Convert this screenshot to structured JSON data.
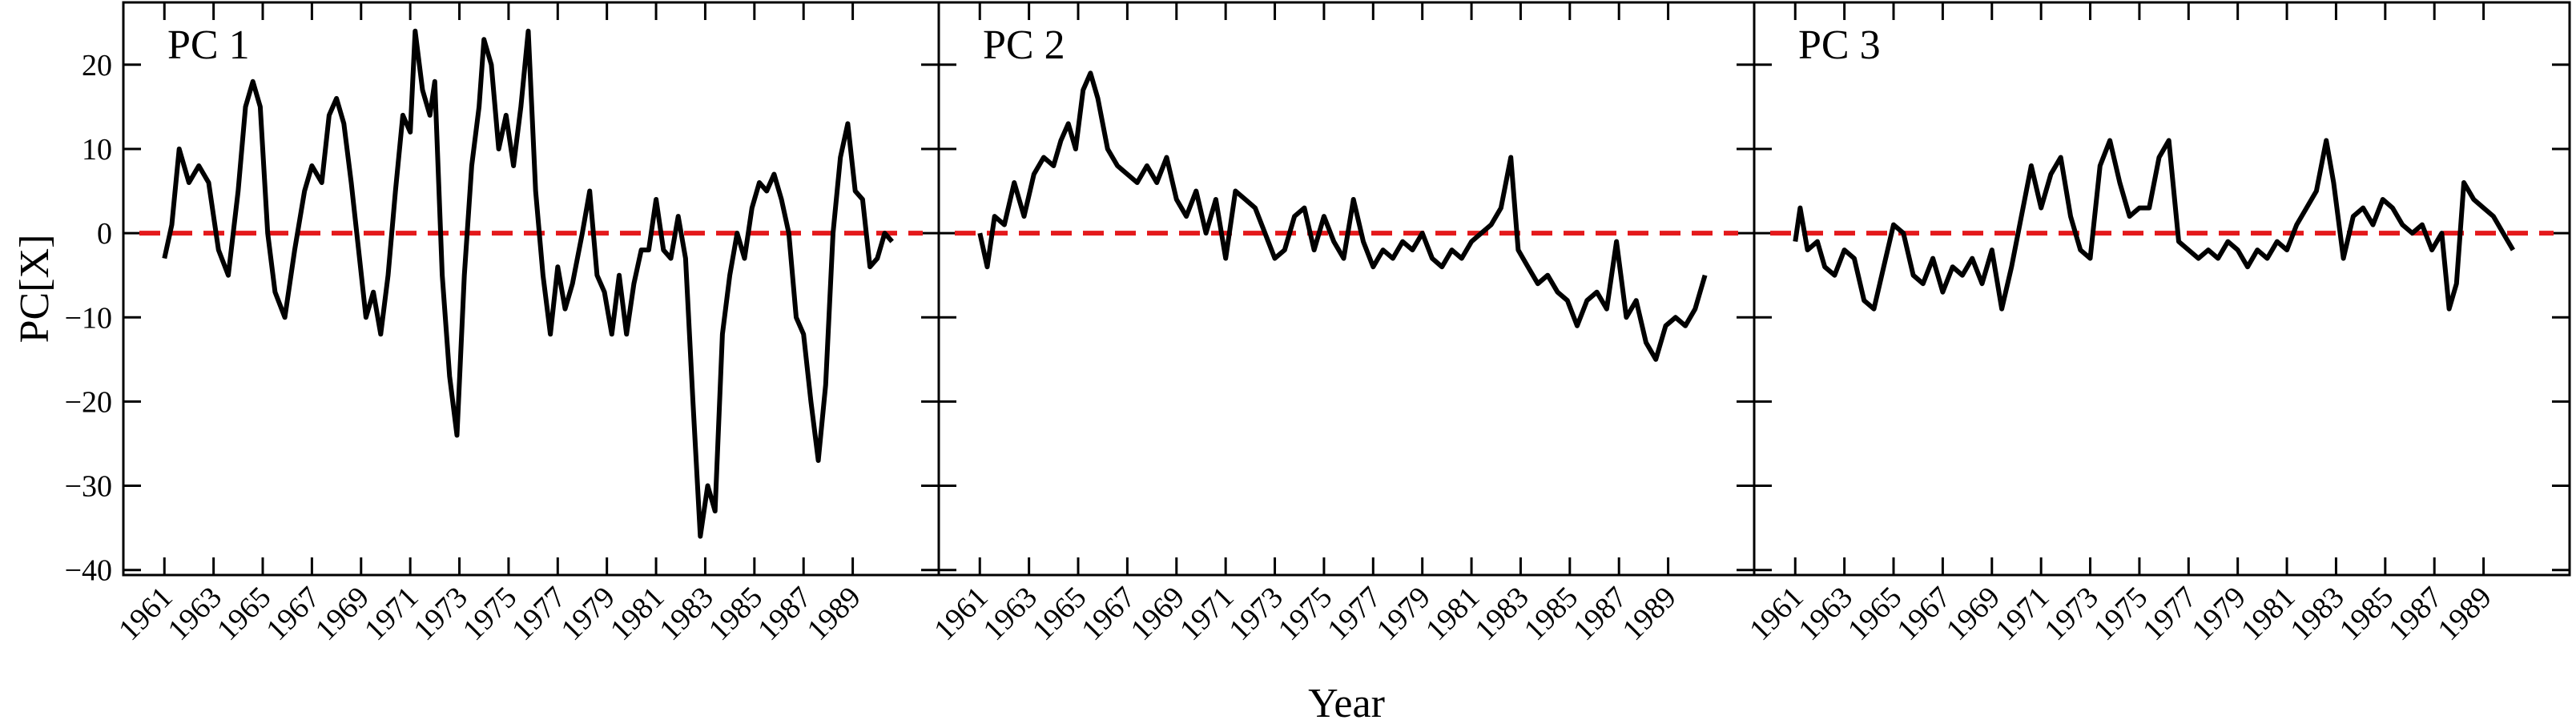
{
  "chart_data": [
    {
      "type": "line",
      "label": "PC 1",
      "ylabel": "PC[X]",
      "color": "#000000",
      "hline": 0,
      "hline_color": "#e41a1c",
      "xlim": [
        1959.33,
        1992.5
      ],
      "ylim": [
        -40.6,
        27.4
      ],
      "xticks": [
        1961,
        1963,
        1965,
        1967,
        1969,
        1971,
        1973,
        1975,
        1977,
        1979,
        1981,
        1983,
        1985,
        1987,
        1989
      ],
      "yticks": [
        {
          "value": -40,
          "label": "−40"
        },
        {
          "value": -30,
          "label": "−30"
        },
        {
          "value": -20,
          "label": "−20"
        },
        {
          "value": -10,
          "label": "−10"
        },
        0,
        10,
        20
      ],
      "x": [
        1961.0,
        1961.3,
        1961.6,
        1962.0,
        1962.4,
        1962.8,
        1963.2,
        1963.6,
        1964.0,
        1964.3,
        1964.6,
        1964.9,
        1965.2,
        1965.5,
        1965.9,
        1966.3,
        1966.7,
        1967.0,
        1967.4,
        1967.7,
        1968.0,
        1968.3,
        1968.6,
        1968.9,
        1969.2,
        1969.5,
        1969.8,
        1970.1,
        1970.4,
        1970.7,
        1971.0,
        1971.2,
        1971.5,
        1971.8,
        1972.0,
        1972.3,
        1972.6,
        1972.9,
        1973.2,
        1973.5,
        1973.8,
        1974.0,
        1974.3,
        1974.6,
        1974.9,
        1975.2,
        1975.5,
        1975.8,
        1976.1,
        1976.4,
        1976.7,
        1977.0,
        1977.3,
        1977.6,
        1978.0,
        1978.3,
        1978.6,
        1978.9,
        1979.2,
        1979.5,
        1979.8,
        1980.1,
        1980.4,
        1980.7,
        1981.0,
        1981.3,
        1981.6,
        1981.9,
        1982.2,
        1982.5,
        1982.8,
        1983.1,
        1983.4,
        1983.7,
        1984.0,
        1984.3,
        1984.6,
        1984.9,
        1985.2,
        1985.5,
        1985.8,
        1986.1,
        1986.4,
        1986.7,
        1987.0,
        1987.3,
        1987.6,
        1987.9,
        1988.2,
        1988.5,
        1988.8,
        1989.1,
        1989.4,
        1989.7,
        1990.0,
        1990.3,
        1990.6
      ],
      "values": [
        -3,
        1,
        10,
        6,
        8,
        6,
        -2,
        -5,
        5,
        15,
        18,
        15,
        0,
        -7,
        -10,
        -2,
        5,
        8,
        6,
        14,
        16,
        13,
        6,
        -2,
        -10,
        -7,
        -12,
        -5,
        5,
        14,
        12,
        24,
        17,
        14,
        18,
        -5,
        -17,
        -24,
        -5,
        8,
        15,
        23,
        20,
        10,
        14,
        8,
        15,
        24,
        5,
        -5,
        -12,
        -4,
        -9,
        -6,
        0,
        5,
        -5,
        -7,
        -12,
        -5,
        -12,
        -6,
        -2,
        -2,
        4,
        -2,
        -3,
        2,
        -3,
        -20,
        -36,
        -30,
        -33,
        -12,
        -5,
        0,
        -3,
        3,
        6,
        5,
        7,
        4,
        0,
        -10,
        -12,
        -20,
        -27,
        -18,
        0,
        9,
        13,
        5,
        4,
        -4,
        -3,
        0,
        -1
      ]
    },
    {
      "type": "line",
      "label": "PC 2",
      "xlabel": "Year",
      "color": "#000000",
      "hline": 0,
      "hline_color": "#e41a1c",
      "xlim": [
        1959.33,
        1992.5
      ],
      "ylim": [
        -40.6,
        27.4
      ],
      "xticks": [
        1961,
        1963,
        1965,
        1967,
        1969,
        1971,
        1973,
        1975,
        1977,
        1979,
        1981,
        1983,
        1985,
        1987,
        1989
      ],
      "yticks": [
        -40,
        -30,
        -20,
        -10,
        0,
        10,
        20
      ],
      "x": [
        1961.0,
        1961.3,
        1961.6,
        1962.0,
        1962.4,
        1962.8,
        1963.2,
        1963.6,
        1964.0,
        1964.3,
        1964.6,
        1964.9,
        1965.2,
        1965.5,
        1965.8,
        1966.2,
        1966.6,
        1967.0,
        1967.4,
        1967.8,
        1968.2,
        1968.6,
        1969.0,
        1969.4,
        1969.8,
        1970.2,
        1970.6,
        1971.0,
        1971.4,
        1971.8,
        1972.2,
        1972.6,
        1973.0,
        1973.4,
        1973.8,
        1974.2,
        1974.6,
        1975.0,
        1975.4,
        1975.8,
        1976.2,
        1976.6,
        1977.0,
        1977.4,
        1977.8,
        1978.2,
        1978.6,
        1979.0,
        1979.4,
        1979.8,
        1980.2,
        1980.6,
        1981.0,
        1981.4,
        1981.8,
        1982.2,
        1982.6,
        1982.9,
        1983.3,
        1983.7,
        1984.1,
        1984.5,
        1984.9,
        1985.3,
        1985.7,
        1986.1,
        1986.5,
        1986.9,
        1987.3,
        1987.7,
        1988.1,
        1988.5,
        1988.9,
        1989.3,
        1989.7,
        1990.1,
        1990.5
      ],
      "values": [
        0,
        -4,
        2,
        1,
        6,
        2,
        7,
        9,
        8,
        11,
        13,
        10,
        17,
        19,
        16,
        10,
        8,
        7,
        6,
        8,
        6,
        9,
        4,
        2,
        5,
        0,
        4,
        -3,
        5,
        4,
        3,
        0,
        -3,
        -2,
        2,
        3,
        -2,
        2,
        -1,
        -3,
        4,
        -1,
        -4,
        -2,
        -3,
        -1,
        -2,
        0,
        -3,
        -4,
        -2,
        -3,
        -1,
        0,
        1,
        3,
        9,
        -2,
        -4,
        -6,
        -5,
        -7,
        -8,
        -11,
        -8,
        -7,
        -9,
        -1,
        -10,
        -8,
        -13,
        -15,
        -11,
        -10,
        -11,
        -9,
        -5
      ]
    },
    {
      "type": "line",
      "label": "PC 3",
      "color": "#000000",
      "hline": 0,
      "hline_color": "#e41a1c",
      "xlim": [
        1959.33,
        1992.5
      ],
      "ylim": [
        -40.6,
        27.4
      ],
      "xticks": [
        1961,
        1963,
        1965,
        1967,
        1969,
        1971,
        1973,
        1975,
        1977,
        1979,
        1981,
        1983,
        1985,
        1987,
        1989
      ],
      "yticks": [
        -40,
        -30,
        -20,
        -10,
        0,
        10,
        20
      ],
      "x": [
        1961.0,
        1961.2,
        1961.5,
        1961.9,
        1962.2,
        1962.6,
        1963.0,
        1963.4,
        1963.8,
        1964.2,
        1964.6,
        1965.0,
        1965.4,
        1965.8,
        1966.2,
        1966.6,
        1967.0,
        1967.4,
        1967.8,
        1968.2,
        1968.6,
        1969.0,
        1969.4,
        1969.8,
        1970.2,
        1970.6,
        1971.0,
        1971.4,
        1971.8,
        1972.2,
        1972.6,
        1973.0,
        1973.4,
        1973.8,
        1974.2,
        1974.6,
        1975.0,
        1975.4,
        1975.8,
        1976.2,
        1976.6,
        1977.0,
        1977.4,
        1977.8,
        1978.2,
        1978.6,
        1979.0,
        1979.4,
        1979.8,
        1980.2,
        1980.6,
        1981.0,
        1981.4,
        1981.8,
        1982.2,
        1982.6,
        1982.9,
        1983.3,
        1983.7,
        1984.1,
        1984.5,
        1984.9,
        1985.3,
        1985.7,
        1986.1,
        1986.5,
        1986.9,
        1987.3,
        1987.6,
        1987.9,
        1988.2,
        1988.6,
        1989.0,
        1989.4,
        1989.8,
        1990.2
      ],
      "values": [
        -1,
        3,
        -2,
        -1,
        -4,
        -5,
        -2,
        -3,
        -8,
        -9,
        -4,
        1,
        0,
        -5,
        -6,
        -3,
        -7,
        -4,
        -5,
        -3,
        -6,
        -2,
        -9,
        -4,
        2,
        8,
        3,
        7,
        9,
        2,
        -2,
        -3,
        8,
        11,
        6,
        2,
        3,
        3,
        9,
        11,
        -1,
        -2,
        -3,
        -2,
        -3,
        -1,
        -2,
        -4,
        -2,
        -3,
        -1,
        -2,
        1,
        3,
        5,
        11,
        6,
        -3,
        2,
        3,
        1,
        4,
        3,
        1,
        0,
        1,
        -2,
        0,
        -9,
        -6,
        6,
        4,
        3,
        2,
        0,
        -2
      ]
    }
  ]
}
